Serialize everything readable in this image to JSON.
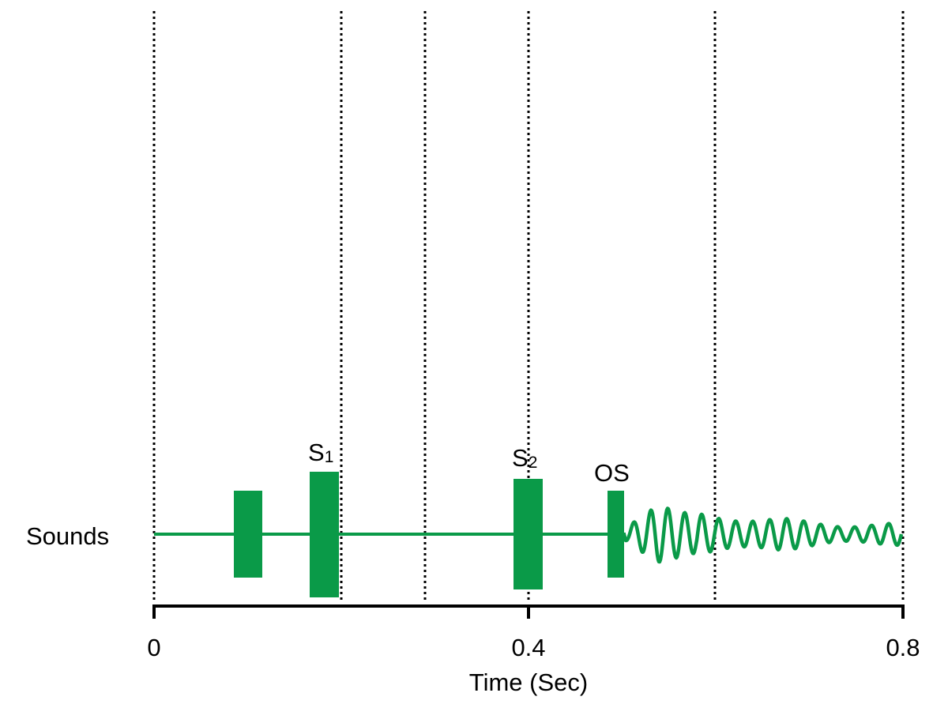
{
  "row_label": "Sounds",
  "x_axis": {
    "title": "Time (Sec)",
    "ticks": [
      "0",
      "0.4",
      "0.8"
    ],
    "range": [
      0,
      0.8
    ]
  },
  "events": [
    {
      "label": "",
      "sub": ""
    },
    {
      "label": "S",
      "sub": "1"
    },
    {
      "label": "S",
      "sub": "2"
    },
    {
      "label": "OS",
      "sub": ""
    }
  ],
  "colors": {
    "signal": "#0a9a48",
    "axis": "#000000"
  }
}
